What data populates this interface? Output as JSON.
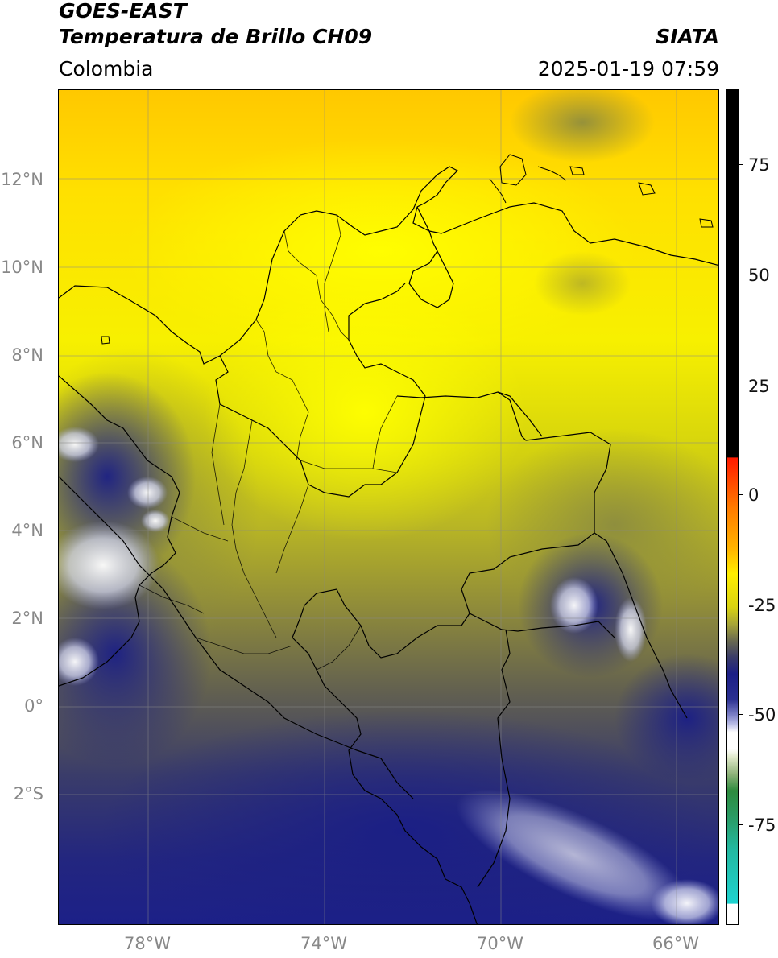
{
  "header": {
    "satellite": "GOES-EAST",
    "product": "Temperatura de Brillo CH09",
    "source": "SIATA",
    "region": "Colombia",
    "datetime": "2025-01-19 07:59"
  },
  "map": {
    "lat_labels": [
      "12°N",
      "10°N",
      "8°N",
      "6°N",
      "4°N",
      "2°N",
      "0°",
      "2°S"
    ],
    "lon_labels": [
      "78°W",
      "74°W",
      "70°W",
      "66°W"
    ],
    "gridlines": true
  },
  "colorbar": {
    "tick_labels": [
      "75",
      "50",
      "25",
      "0",
      "-25",
      "-50",
      "-75"
    ],
    "colors": {
      "white_low": "#ffffff",
      "cyan": "#1fd3d0",
      "green": "#2e8b3e",
      "pale_green": "#dfe8c9",
      "lavender": "#b9bce6",
      "navy": "#1b1f86",
      "olive_gray": "#5c5c4c",
      "olive": "#a6a33a",
      "yellow": "#ffee00",
      "orange": "#ff9a00",
      "red": "#ff2000",
      "black_high": "#000000"
    }
  }
}
